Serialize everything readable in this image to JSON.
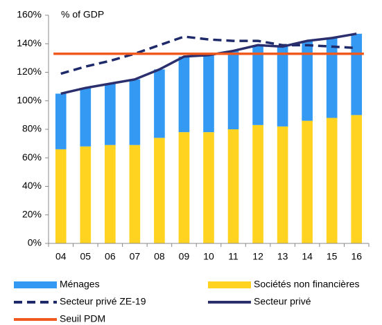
{
  "chart_data": {
    "type": "bar",
    "stacked": true,
    "annotation": "% of GDP",
    "categories": [
      "04",
      "05",
      "06",
      "07",
      "08",
      "09",
      "10",
      "11",
      "12",
      "13",
      "14",
      "15",
      "16"
    ],
    "ylim": [
      0,
      160
    ],
    "yticks": [
      {
        "value": 0,
        "label": "0%"
      },
      {
        "value": 20,
        "label": "20%"
      },
      {
        "value": 40,
        "label": "40%"
      },
      {
        "value": 60,
        "label": "60%"
      },
      {
        "value": 80,
        "label": "80%"
      },
      {
        "value": 100,
        "label": "100%"
      },
      {
        "value": 120,
        "label": "120%"
      },
      {
        "value": 140,
        "label": "140%"
      },
      {
        "value": 160,
        "label": "160%"
      }
    ],
    "series": [
      {
        "name": "Ménages",
        "type": "bar",
        "color": "#3399f3",
        "values": [
          39,
          41,
          43,
          46,
          48,
          53,
          54,
          55,
          56,
          56,
          56,
          56,
          57
        ]
      },
      {
        "name": "Sociétés non financières",
        "type": "bar",
        "color": "#ffd320",
        "values": [
          66,
          68,
          69,
          69,
          74,
          78,
          78,
          80,
          83,
          82,
          86,
          88,
          90
        ]
      },
      {
        "name": "Secteur privé ZE-19",
        "type": "line",
        "dashed": true,
        "color": "#1f2a6b",
        "values": [
          119,
          124,
          128,
          133,
          139,
          145,
          143,
          142,
          142,
          139,
          139,
          138,
          137
        ]
      },
      {
        "name": "Secteur privé",
        "type": "line",
        "color": "#2b2f6e",
        "values": [
          105,
          109,
          112,
          115,
          122,
          131,
          132,
          135,
          139,
          138,
          142,
          144,
          147
        ]
      },
      {
        "name": "Seuil PDM",
        "type": "line",
        "color": "#f05a1e",
        "values": [
          133,
          133,
          133,
          133,
          133,
          133,
          133,
          133,
          133,
          133,
          133,
          133,
          133
        ]
      }
    ]
  }
}
